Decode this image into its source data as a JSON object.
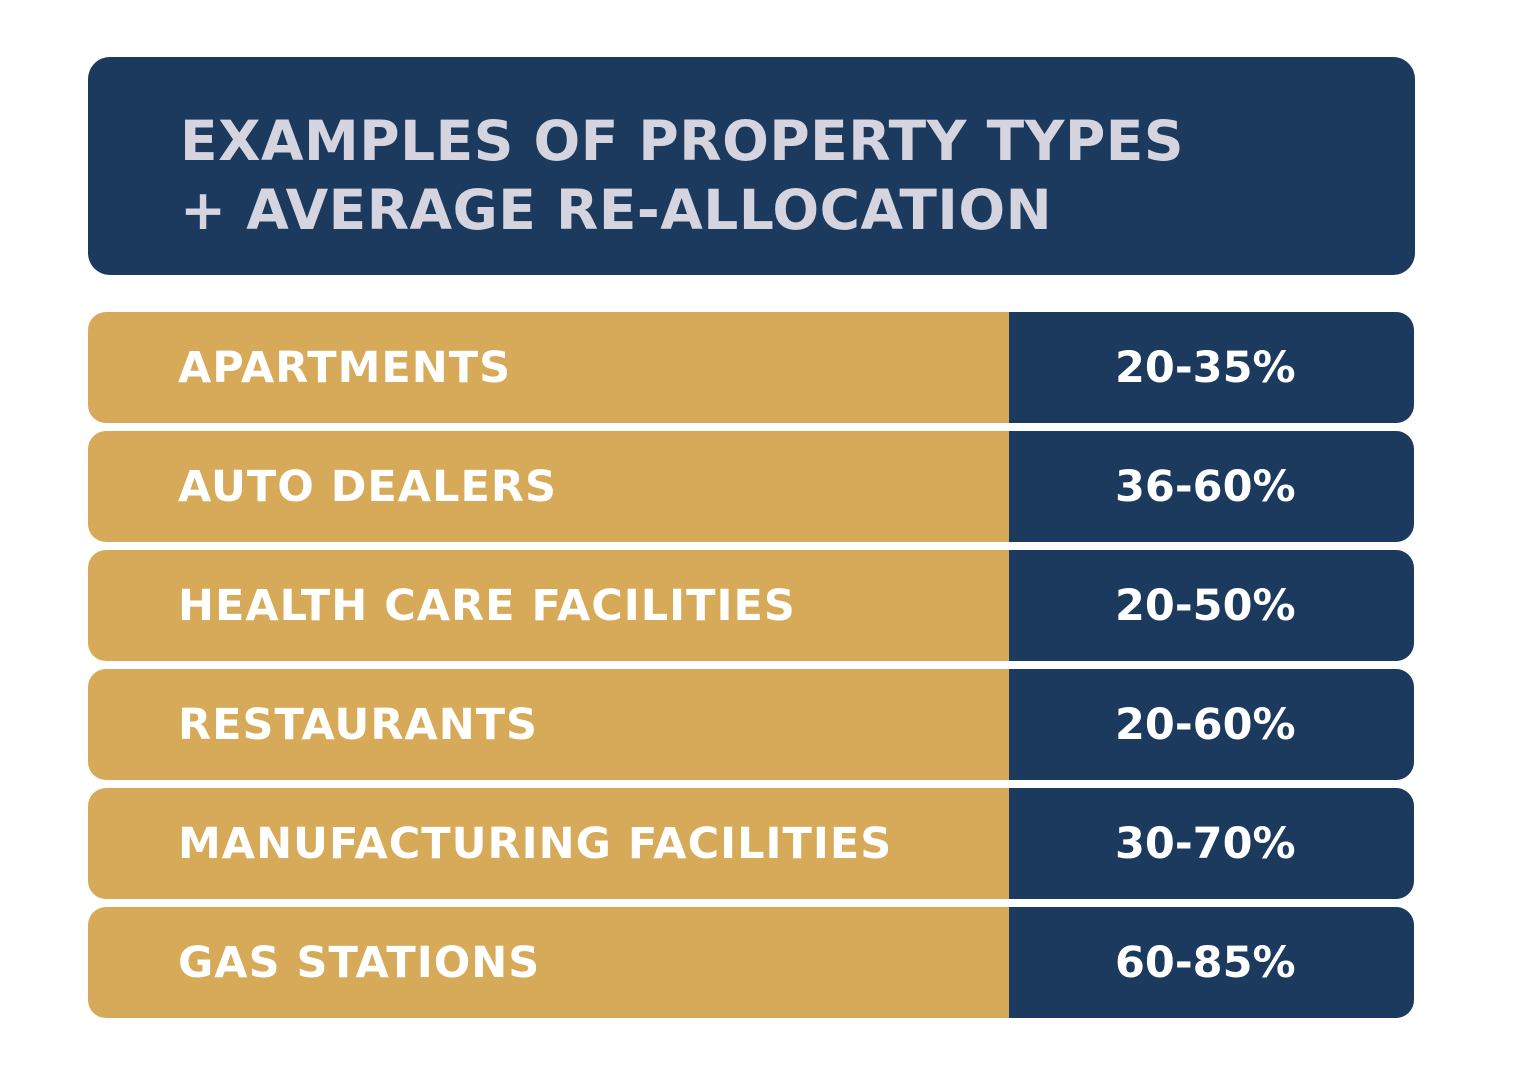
{
  "header": {
    "line1": "EXAMPLES OF PROPERTY TYPES",
    "line2": "+ AVERAGE RE-ALLOCATION"
  },
  "rows": [
    {
      "label": "APARTMENTS",
      "value": "20-35%"
    },
    {
      "label": "AUTO DEALERS",
      "value": "36-60%"
    },
    {
      "label": "HEALTH CARE FACILITIES",
      "value": "20-50%"
    },
    {
      "label": "RESTAURANTS",
      "value": "20-60%"
    },
    {
      "label": "MANUFACTURING FACILITIES",
      "value": "30-70%"
    },
    {
      "label": "GAS STATIONS",
      "value": "60-85%"
    }
  ],
  "colors": {
    "navy": "#1c3a5e",
    "gold": "#d6aa58",
    "header_text": "#d5d4df",
    "row_text": "#ffffff"
  }
}
